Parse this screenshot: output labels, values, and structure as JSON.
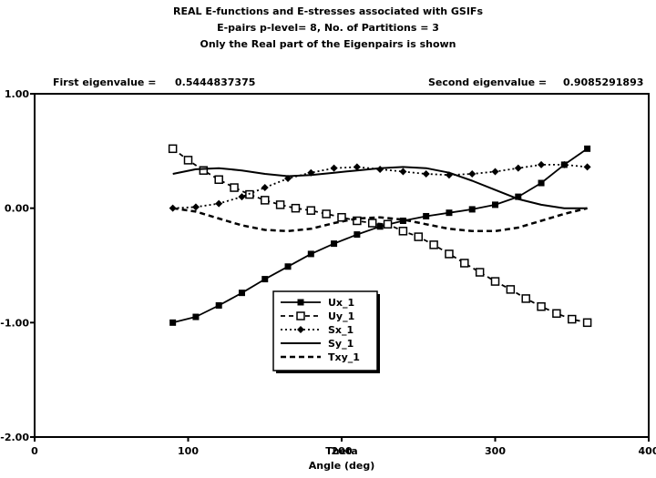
{
  "chart_data": {
    "type": "line",
    "title_lines": [
      "REAL E-functions and E-stresses associated with GSIFs",
      "E-pairs p-level= 8, No. of Partitions = 3",
      "Only the Real part of the Eigenpairs is shown"
    ],
    "eigen": {
      "first_label": "First eigenvalue =",
      "first_value": "0.5444837375",
      "second_label": "Second eigenvalue =",
      "second_value": "0.9085291893"
    },
    "xlabel_lines": [
      "Theta",
      "Angle (deg)"
    ],
    "xlim": [
      0,
      400
    ],
    "ylim": [
      -2,
      1
    ],
    "x_ticks": [
      0,
      100,
      200,
      300,
      400
    ],
    "x_tick_labels": [
      "0",
      "100",
      "200",
      "300",
      "400"
    ],
    "y_ticks": [
      1,
      0,
      -1,
      -2
    ],
    "y_tick_labels": [
      "1.00",
      "0.00",
      "-1.00",
      "-2.00"
    ],
    "grid": false,
    "legend_position": "lower-center",
    "series": [
      {
        "name": "Ux_1",
        "style": "solid-square",
        "x": [
          90,
          105,
          120,
          135,
          150,
          165,
          180,
          195,
          210,
          225,
          240,
          255,
          270,
          285,
          300,
          315,
          330,
          345,
          360
        ],
        "y": [
          -1.0,
          -0.95,
          -0.85,
          -0.74,
          -0.62,
          -0.51,
          -0.4,
          -0.31,
          -0.23,
          -0.16,
          -0.11,
          -0.07,
          -0.04,
          -0.01,
          0.03,
          0.1,
          0.22,
          0.38,
          0.52
        ]
      },
      {
        "name": "Uy_1",
        "style": "dash-open-square",
        "x": [
          90,
          100,
          110,
          120,
          130,
          140,
          150,
          160,
          170,
          180,
          190,
          200,
          210,
          220,
          230,
          240,
          250,
          260,
          270,
          280,
          290,
          300,
          310,
          320,
          330,
          340,
          350,
          360
        ],
        "y": [
          0.52,
          0.42,
          0.33,
          0.25,
          0.18,
          0.12,
          0.07,
          0.03,
          0.0,
          -0.02,
          -0.05,
          -0.08,
          -0.11,
          -0.13,
          -0.14,
          -0.2,
          -0.25,
          -0.32,
          -0.4,
          -0.48,
          -0.56,
          -0.64,
          -0.71,
          -0.79,
          -0.86,
          -0.92,
          -0.97,
          -1.0
        ]
      },
      {
        "name": "Sx_1",
        "style": "dot-diamond",
        "x": [
          90,
          105,
          120,
          135,
          150,
          165,
          180,
          195,
          210,
          225,
          240,
          255,
          270,
          285,
          300,
          315,
          330,
          345,
          360
        ],
        "y": [
          0.0,
          0.01,
          0.04,
          0.1,
          0.18,
          0.26,
          0.31,
          0.35,
          0.36,
          0.34,
          0.32,
          0.3,
          0.29,
          0.3,
          0.32,
          0.35,
          0.38,
          0.38,
          0.36
        ]
      },
      {
        "name": "Sy_1",
        "style": "solid",
        "x": [
          90,
          105,
          120,
          135,
          150,
          165,
          180,
          195,
          210,
          225,
          240,
          255,
          270,
          285,
          300,
          315,
          330,
          345,
          360
        ],
        "y": [
          0.3,
          0.34,
          0.35,
          0.33,
          0.3,
          0.28,
          0.29,
          0.31,
          0.33,
          0.35,
          0.36,
          0.35,
          0.31,
          0.24,
          0.16,
          0.08,
          0.03,
          0.0,
          0.0
        ]
      },
      {
        "name": "Txy_1",
        "style": "dashed",
        "x": [
          90,
          105,
          120,
          135,
          150,
          165,
          180,
          195,
          210,
          225,
          240,
          255,
          270,
          285,
          300,
          315,
          330,
          345,
          360
        ],
        "y": [
          0.0,
          -0.03,
          -0.09,
          -0.15,
          -0.19,
          -0.2,
          -0.18,
          -0.13,
          -0.09,
          -0.08,
          -0.1,
          -0.14,
          -0.18,
          -0.2,
          -0.2,
          -0.17,
          -0.11,
          -0.05,
          0.0
        ]
      }
    ]
  }
}
